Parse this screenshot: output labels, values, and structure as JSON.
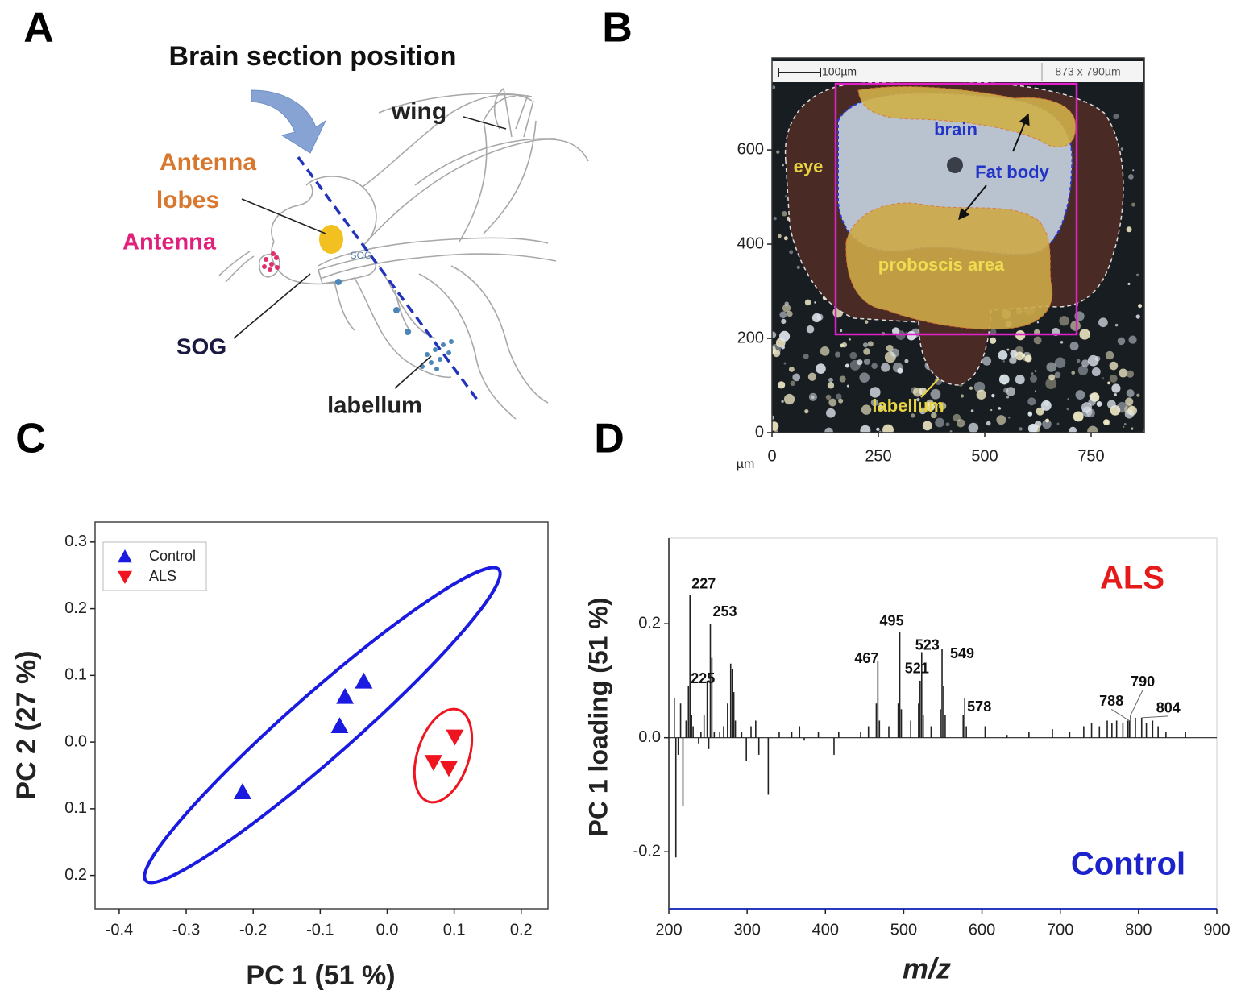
{
  "diagram": {
    "panel": "A",
    "title": "Brain section position",
    "labels": [
      "wing",
      "Antenna",
      "lobes",
      "Antenna",
      "SOG",
      "labellum",
      "SOG"
    ]
  },
  "chart_data": [
    {
      "type": "image",
      "panel": "B",
      "xlabel": "µm",
      "xlim": [
        0,
        875
      ],
      "ylim": [
        0,
        795
      ],
      "xticks": [
        0,
        250,
        500,
        750
      ],
      "yticks": [
        0,
        200,
        400,
        600
      ],
      "scale_labels": [
        "100µm",
        "873 x 790µm"
      ],
      "labels": [
        {
          "text": "brain",
          "color": "#2233c8"
        },
        {
          "text": "Fat body",
          "color": "#2233c8"
        },
        {
          "text": "eye",
          "color": "#e8d440"
        },
        {
          "text": "proboscis area",
          "color": "#f0dc50"
        },
        {
          "text": "labellum",
          "color": "#e8d440"
        }
      ]
    },
    {
      "type": "scatter",
      "panel": "C",
      "xlabel": "PC 1 (51 %)",
      "ylabel": "PC 2 (27 %)",
      "xlim": [
        -0.436,
        0.24
      ],
      "ylim": [
        -0.25,
        0.33
      ],
      "xticks": [
        -0.4,
        -0.3,
        -0.2,
        -0.1,
        {
          "value": 0,
          "label": "0.0"
        },
        0.1,
        0.2
      ],
      "yticks": [
        0.3,
        0.2,
        0.1,
        {
          "value": 0,
          "label": "0.0"
        },
        {
          "value": -0.1,
          "label": "0.1"
        },
        {
          "value": -0.2,
          "label": "0.2"
        }
      ],
      "legend": "top-left",
      "series": [
        {
          "name": "Control",
          "color": "#1a1ae0",
          "marker": "triangle-up",
          "x": [
            -0.216,
            -0.071,
            -0.063,
            -0.035
          ],
          "values": [
            -0.075,
            0.024,
            0.068,
            0.091
          ]
        },
        {
          "name": "ALS",
          "color": "#ee1520",
          "marker": "triangle-down",
          "x": [
            0.069,
            0.092,
            0.101
          ],
          "values": [
            -0.03,
            -0.039,
            0.008
          ]
        }
      ]
    },
    {
      "type": "bar",
      "panel": "D",
      "xlabel": "m/z",
      "ylabel": "PC 1 loading (51 %)",
      "xlim": [
        200,
        900
      ],
      "ylim": [
        -0.3,
        0.35
      ],
      "xticks": [
        200,
        300,
        400,
        500,
        600,
        700,
        800,
        900
      ],
      "yticks": [
        -0.2,
        {
          "value": 0,
          "label": "0.0"
        },
        0.2
      ],
      "color": "#222222",
      "x": [
        207,
        209,
        212,
        215,
        218,
        222,
        225,
        227,
        229,
        231,
        238,
        241,
        245,
        249,
        251,
        253,
        255,
        258,
        265,
        270,
        275,
        279,
        281,
        283,
        285,
        293,
        299,
        305,
        311,
        315,
        327,
        341,
        357,
        367,
        373,
        391,
        411,
        417,
        445,
        455,
        465,
        467,
        469,
        481,
        493,
        495,
        497,
        509,
        519,
        521,
        523,
        525,
        535,
        547,
        549,
        551,
        553,
        576,
        578,
        580,
        604,
        632,
        660,
        690,
        712,
        730,
        740,
        750,
        760,
        766,
        772,
        780,
        786,
        788,
        790,
        796,
        804,
        810,
        818,
        825,
        835,
        860
      ],
      "values": [
        0.07,
        -0.21,
        -0.03,
        0.06,
        -0.12,
        0.03,
        0.09,
        0.25,
        0.04,
        0.02,
        -0.01,
        0.01,
        0.04,
        0.1,
        -0.02,
        0.2,
        0.14,
        0.01,
        0.01,
        0.02,
        0.06,
        0.13,
        0.12,
        0.08,
        0.03,
        0.01,
        -0.04,
        0.02,
        0.03,
        -0.03,
        -0.1,
        0.01,
        0.01,
        0.02,
        -0.005,
        0.01,
        -0.03,
        0.01,
        0.01,
        0.02,
        0.06,
        0.135,
        0.03,
        0.02,
        0.06,
        0.185,
        0.05,
        0.03,
        0.06,
        0.1,
        0.15,
        0.04,
        0.02,
        0.05,
        0.155,
        0.09,
        0.04,
        0.04,
        0.07,
        0.02,
        0.02,
        0.005,
        0.01,
        0.015,
        0.01,
        0.02,
        0.025,
        0.02,
        0.03,
        0.025,
        0.03,
        0.025,
        0.03,
        0.03,
        0.04,
        0.035,
        0.035,
        0.025,
        0.03,
        0.02,
        0.01,
        0.01
      ],
      "annotations": [
        {
          "x": 225,
          "y": 0.09
        },
        {
          "x": 227,
          "y": 0.25
        },
        {
          "x": 253,
          "y": 0.2
        },
        {
          "x": 467,
          "y": 0.135
        },
        {
          "x": 495,
          "y": 0.185
        },
        {
          "x": 521,
          "y": 0.1
        },
        {
          "x": 523,
          "y": 0.15
        },
        {
          "x": 549,
          "y": 0.155
        },
        {
          "x": 578,
          "y": 0.07
        },
        {
          "x": 788,
          "y": 0.03
        },
        {
          "x": 790,
          "y": 0.04
        },
        {
          "x": 804,
          "y": 0.035
        }
      ],
      "labels": [
        {
          "text": "ALS",
          "color": "#e51a1a"
        },
        {
          "text": "Control",
          "color": "#1c22cc"
        }
      ]
    }
  ]
}
